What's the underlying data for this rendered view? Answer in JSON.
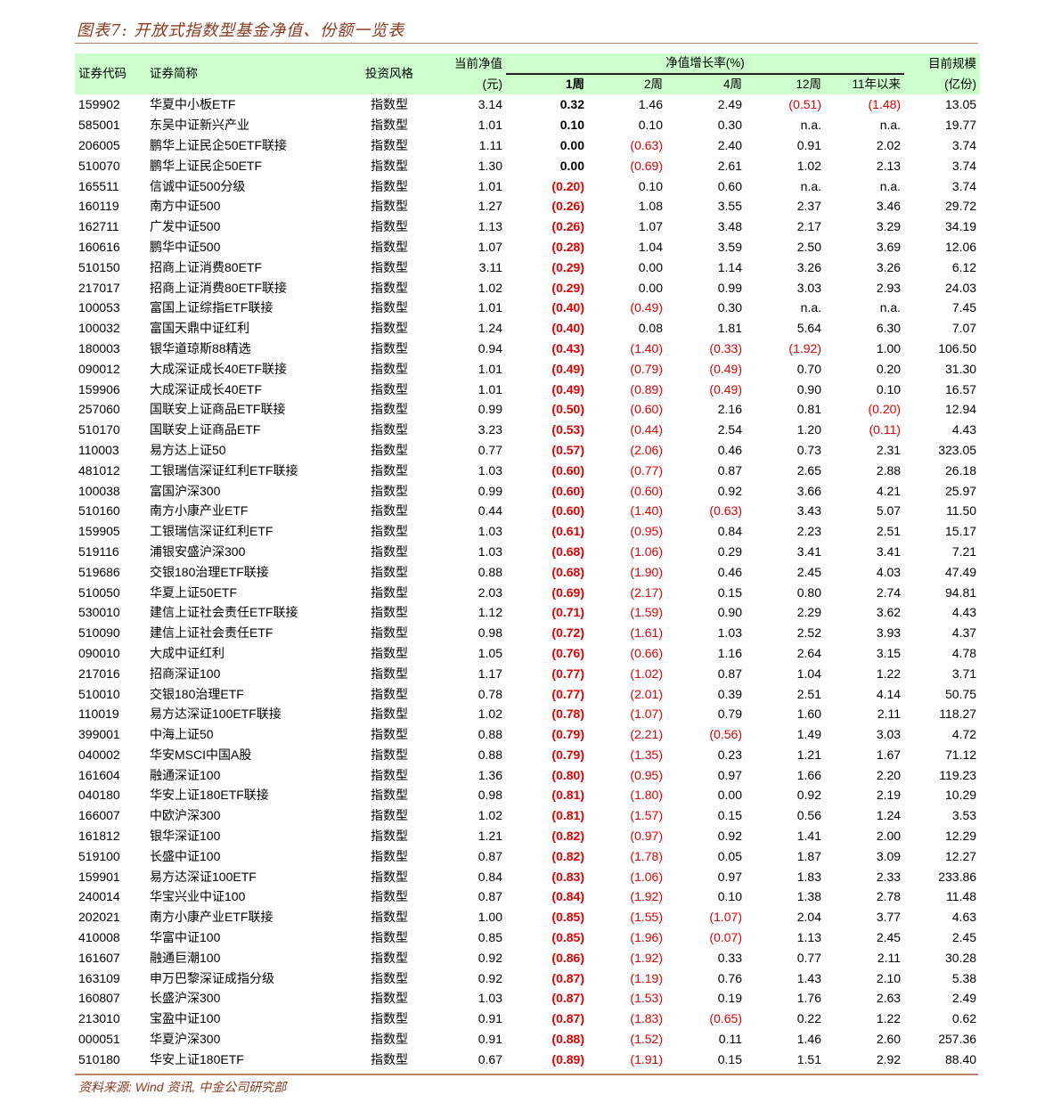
{
  "title": "图表7:  开放式指数型基金净值、份额一览表",
  "source": "资料来源: Wind 资讯,  中金公司研究部",
  "header": {
    "code": "证券代码",
    "name": "证券简称",
    "style": "投资风格",
    "nav": "当前净值",
    "nav_unit": "(元)",
    "growth_group": "净值增长率(%)",
    "w1": "1周",
    "w2": "2周",
    "w4": "4周",
    "w12": "12周",
    "ytd": "11年以来",
    "size": "目前规模",
    "size_unit": "(亿份)"
  },
  "colors": {
    "header_bg": "#ccffcc",
    "negative": "#e00000",
    "accent": "#8b3a1e"
  },
  "rows": [
    [
      "159902",
      "华夏中小板ETF",
      "指数型",
      "3.14",
      "0.32",
      "1.46",
      "2.49",
      "(0.51)",
      "(1.48)",
      "13.05"
    ],
    [
      "585001",
      "东吴中证新兴产业",
      "指数型",
      "1.01",
      "0.10",
      "0.10",
      "0.30",
      "n.a.",
      "n.a.",
      "19.77"
    ],
    [
      "206005",
      "鹏华上证民企50ETF联接",
      "指数型",
      "1.11",
      "0.00",
      "(0.63)",
      "2.40",
      "0.91",
      "2.02",
      "3.74"
    ],
    [
      "510070",
      "鹏华上证民企50ETF",
      "指数型",
      "1.30",
      "0.00",
      "(0.69)",
      "2.61",
      "1.02",
      "2.13",
      "3.74"
    ],
    [
      "165511",
      "信诚中证500分级",
      "指数型",
      "1.01",
      "(0.20)",
      "0.10",
      "0.60",
      "n.a.",
      "n.a.",
      "3.74"
    ],
    [
      "160119",
      "南方中证500",
      "指数型",
      "1.27",
      "(0.26)",
      "1.08",
      "3.55",
      "2.37",
      "3.46",
      "29.72"
    ],
    [
      "162711",
      "广发中证500",
      "指数型",
      "1.13",
      "(0.26)",
      "1.07",
      "3.48",
      "2.17",
      "3.29",
      "34.19"
    ],
    [
      "160616",
      "鹏华中证500",
      "指数型",
      "1.07",
      "(0.28)",
      "1.04",
      "3.59",
      "2.50",
      "3.69",
      "12.06"
    ],
    [
      "510150",
      "招商上证消费80ETF",
      "指数型",
      "3.11",
      "(0.29)",
      "0.00",
      "1.14",
      "3.26",
      "3.26",
      "6.12"
    ],
    [
      "217017",
      "招商上证消费80ETF联接",
      "指数型",
      "1.02",
      "(0.29)",
      "0.00",
      "0.99",
      "3.03",
      "2.93",
      "24.03"
    ],
    [
      "100053",
      "富国上证综指ETF联接",
      "指数型",
      "1.01",
      "(0.40)",
      "(0.49)",
      "0.30",
      "n.a.",
      "n.a.",
      "7.45"
    ],
    [
      "100032",
      "富国天鼎中证红利",
      "指数型",
      "1.24",
      "(0.40)",
      "0.08",
      "1.81",
      "5.64",
      "6.30",
      "7.07"
    ],
    [
      "180003",
      "银华道琼斯88精选",
      "指数型",
      "0.94",
      "(0.43)",
      "(1.40)",
      "(0.33)",
      "(1.92)",
      "1.00",
      "106.50"
    ],
    [
      "090012",
      "大成深证成长40ETF联接",
      "指数型",
      "1.01",
      "(0.49)",
      "(0.79)",
      "(0.49)",
      "0.70",
      "0.20",
      "31.30"
    ],
    [
      "159906",
      "大成深证成长40ETF",
      "指数型",
      "1.01",
      "(0.49)",
      "(0.89)",
      "(0.49)",
      "0.90",
      "0.10",
      "16.57"
    ],
    [
      "257060",
      "国联安上证商品ETF联接",
      "指数型",
      "0.99",
      "(0.50)",
      "(0.60)",
      "2.16",
      "0.81",
      "(0.20)",
      "12.94"
    ],
    [
      "510170",
      "国联安上证商品ETF",
      "指数型",
      "3.23",
      "(0.53)",
      "(0.44)",
      "2.54",
      "1.20",
      "(0.11)",
      "4.43"
    ],
    [
      "110003",
      "易方达上证50",
      "指数型",
      "0.77",
      "(0.57)",
      "(2.06)",
      "0.46",
      "0.73",
      "2.31",
      "323.05"
    ],
    [
      "481012",
      "工银瑞信深证红利ETF联接",
      "指数型",
      "1.03",
      "(0.60)",
      "(0.77)",
      "0.87",
      "2.65",
      "2.88",
      "26.18"
    ],
    [
      "100038",
      "富国沪深300",
      "指数型",
      "0.99",
      "(0.60)",
      "(0.60)",
      "0.92",
      "3.66",
      "4.21",
      "25.97"
    ],
    [
      "510160",
      "南方小康产业ETF",
      "指数型",
      "0.44",
      "(0.60)",
      "(1.40)",
      "(0.63)",
      "3.43",
      "5.07",
      "11.50"
    ],
    [
      "159905",
      "工银瑞信深证红利ETF",
      "指数型",
      "1.03",
      "(0.61)",
      "(0.95)",
      "0.84",
      "2.23",
      "2.51",
      "15.17"
    ],
    [
      "519116",
      "浦银安盛沪深300",
      "指数型",
      "1.03",
      "(0.68)",
      "(1.06)",
      "0.29",
      "3.41",
      "3.41",
      "7.21"
    ],
    [
      "519686",
      "交银180治理ETF联接",
      "指数型",
      "0.88",
      "(0.68)",
      "(1.90)",
      "0.46",
      "2.45",
      "4.03",
      "47.49"
    ],
    [
      "510050",
      "华夏上证50ETF",
      "指数型",
      "2.03",
      "(0.69)",
      "(2.17)",
      "0.15",
      "0.80",
      "2.74",
      "94.81"
    ],
    [
      "530010",
      "建信上证社会责任ETF联接",
      "指数型",
      "1.12",
      "(0.71)",
      "(1.59)",
      "0.90",
      "2.29",
      "3.62",
      "4.43"
    ],
    [
      "510090",
      "建信上证社会责任ETF",
      "指数型",
      "0.98",
      "(0.72)",
      "(1.61)",
      "1.03",
      "2.52",
      "3.93",
      "4.37"
    ],
    [
      "090010",
      "大成中证红利",
      "指数型",
      "1.05",
      "(0.76)",
      "(0.66)",
      "1.16",
      "2.64",
      "3.15",
      "4.78"
    ],
    [
      "217016",
      "招商深证100",
      "指数型",
      "1.17",
      "(0.77)",
      "(1.02)",
      "0.87",
      "1.04",
      "1.22",
      "3.71"
    ],
    [
      "510010",
      "交银180治理ETF",
      "指数型",
      "0.78",
      "(0.77)",
      "(2.01)",
      "0.39",
      "2.51",
      "4.14",
      "50.75"
    ],
    [
      "110019",
      "易方达深证100ETF联接",
      "指数型",
      "1.02",
      "(0.78)",
      "(1.07)",
      "0.79",
      "1.60",
      "2.11",
      "118.27"
    ],
    [
      "399001",
      "中海上证50",
      "指数型",
      "0.88",
      "(0.79)",
      "(2.21)",
      "(0.56)",
      "1.49",
      "3.03",
      "4.72"
    ],
    [
      "040002",
      "华安MSCI中国A股",
      "指数型",
      "0.88",
      "(0.79)",
      "(1.35)",
      "0.23",
      "1.21",
      "1.67",
      "71.12"
    ],
    [
      "161604",
      "融通深证100",
      "指数型",
      "1.36",
      "(0.80)",
      "(0.95)",
      "0.97",
      "1.66",
      "2.20",
      "119.23"
    ],
    [
      "040180",
      "华安上证180ETF联接",
      "指数型",
      "0.98",
      "(0.81)",
      "(1.80)",
      "0.00",
      "0.92",
      "2.19",
      "10.29"
    ],
    [
      "166007",
      "中欧沪深300",
      "指数型",
      "1.02",
      "(0.81)",
      "(1.57)",
      "0.15",
      "0.56",
      "1.24",
      "3.53"
    ],
    [
      "161812",
      "银华深证100",
      "指数型",
      "1.21",
      "(0.82)",
      "(0.97)",
      "0.92",
      "1.41",
      "2.00",
      "12.29"
    ],
    [
      "519100",
      "长盛中证100",
      "指数型",
      "0.87",
      "(0.82)",
      "(1.78)",
      "0.05",
      "1.87",
      "3.09",
      "12.27"
    ],
    [
      "159901",
      "易方达深证100ETF",
      "指数型",
      "0.84",
      "(0.83)",
      "(1.06)",
      "0.97",
      "1.83",
      "2.33",
      "233.86"
    ],
    [
      "240014",
      "华宝兴业中证100",
      "指数型",
      "0.87",
      "(0.84)",
      "(1.92)",
      "0.10",
      "1.38",
      "2.78",
      "11.48"
    ],
    [
      "202021",
      "南方小康产业ETF联接",
      "指数型",
      "1.00",
      "(0.85)",
      "(1.55)",
      "(1.07)",
      "2.04",
      "3.77",
      "4.63"
    ],
    [
      "410008",
      "华富中证100",
      "指数型",
      "0.85",
      "(0.85)",
      "(1.96)",
      "(0.07)",
      "1.13",
      "2.45",
      "2.45"
    ],
    [
      "161607",
      "融通巨潮100",
      "指数型",
      "0.92",
      "(0.86)",
      "(1.92)",
      "0.33",
      "0.77",
      "2.11",
      "30.28"
    ],
    [
      "163109",
      "申万巴黎深证成指分级",
      "指数型",
      "0.92",
      "(0.87)",
      "(1.19)",
      "0.76",
      "1.43",
      "2.10",
      "5.38"
    ],
    [
      "160807",
      "长盛沪深300",
      "指数型",
      "1.03",
      "(0.87)",
      "(1.53)",
      "0.19",
      "1.76",
      "2.63",
      "2.49"
    ],
    [
      "213010",
      "宝盈中证100",
      "指数型",
      "0.91",
      "(0.87)",
      "(1.83)",
      "(0.65)",
      "0.22",
      "1.22",
      "0.62"
    ],
    [
      "000051",
      "华夏沪深300",
      "指数型",
      "0.91",
      "(0.88)",
      "(1.52)",
      "0.11",
      "1.46",
      "2.60",
      "257.36"
    ],
    [
      "510180",
      "华安上证180ETF",
      "指数型",
      "0.67",
      "(0.89)",
      "(1.91)",
      "0.15",
      "1.51",
      "2.92",
      "88.40"
    ]
  ]
}
